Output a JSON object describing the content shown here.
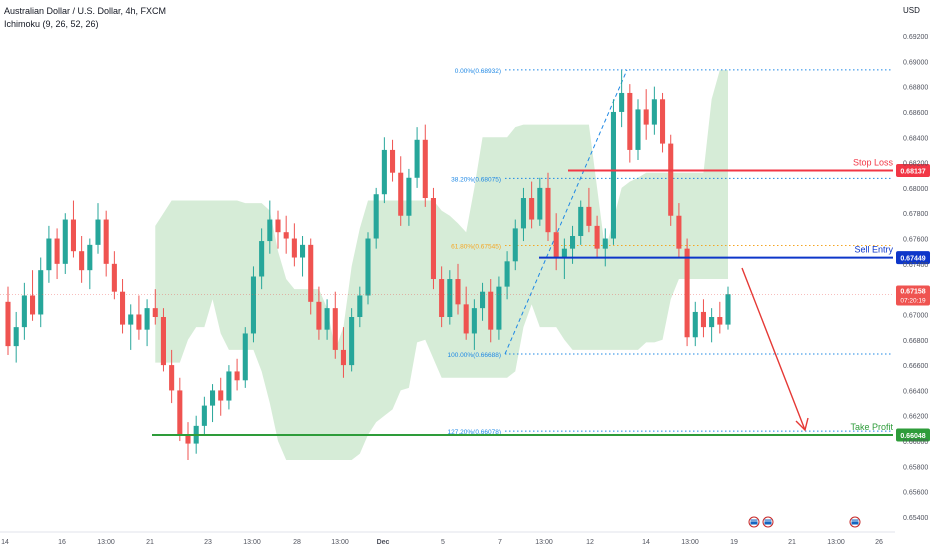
{
  "header": {
    "symbol_title": "Australian Dollar / U.S. Dollar, 4h, FXCM",
    "indicator": "Ichimoku (9, 26, 52, 26)"
  },
  "colors": {
    "up": "#26a69a",
    "down": "#ef5350",
    "cloud_bull": "#c8e6c9",
    "cloud_bear": "#ffcdd2",
    "fib_line": "#1e88e5",
    "stop_loss": "#f23645",
    "sell_entry": "#0d36c9",
    "take_profit": "#2e9c3a",
    "price_tag": "#ef5350",
    "arrow": "#e53935"
  },
  "chart_data": {
    "type": "candlestick",
    "currency": "USD",
    "ylim": [
      0.653,
      0.6946
    ],
    "y_ticks": [
      "0.65400",
      "0.65600",
      "0.65800",
      "0.66000",
      "0.66200",
      "0.66400",
      "0.66600",
      "0.66800",
      "0.67000",
      "0.67200",
      "0.67400",
      "0.67600",
      "0.67800",
      "0.68000",
      "0.68200",
      "0.68400",
      "0.68600",
      "0.68800",
      "0.69000",
      "0.69200"
    ],
    "x_ticks": [
      "14",
      "16",
      "13:00",
      "21",
      "23",
      "13:00",
      "28",
      "13:00",
      "Dec",
      "5",
      "7",
      "13:00",
      "12",
      "14",
      "13:00",
      "19",
      "21",
      "13:00",
      "26"
    ],
    "fib_levels": [
      {
        "label": "0.00%(0.68932)",
        "value": 0.68932
      },
      {
        "label": "38.20%(0.68075)",
        "value": 0.68075
      },
      {
        "label": "61.80%(0.67545)",
        "value": 0.67545
      },
      {
        "label": "100.00%(0.66688)",
        "value": 0.66688
      },
      {
        "label": "127.20%(0.66078)",
        "value": 0.66078
      }
    ],
    "levels": [
      {
        "name": "Stop Loss",
        "value": 0.68137,
        "tag": "0.68137"
      },
      {
        "name": "Sell Entry",
        "value": 0.67449,
        "tag": "0.67449"
      },
      {
        "name": "Take Profit",
        "value": 0.66048,
        "tag": "0.66048"
      }
    ],
    "last_price": {
      "value": 0.67158,
      "tag": "0.67158",
      "countdown": "07:20:19"
    },
    "candles": [
      {
        "o": 0.671,
        "h": 0.6722,
        "l": 0.6668,
        "c": 0.6675
      },
      {
        "o": 0.6675,
        "h": 0.6702,
        "l": 0.6662,
        "c": 0.669
      },
      {
        "o": 0.669,
        "h": 0.6725,
        "l": 0.668,
        "c": 0.6715
      },
      {
        "o": 0.6715,
        "h": 0.6735,
        "l": 0.6695,
        "c": 0.67
      },
      {
        "o": 0.67,
        "h": 0.6745,
        "l": 0.669,
        "c": 0.6735
      },
      {
        "o": 0.6735,
        "h": 0.677,
        "l": 0.6725,
        "c": 0.676
      },
      {
        "o": 0.676,
        "h": 0.6768,
        "l": 0.6728,
        "c": 0.674
      },
      {
        "o": 0.674,
        "h": 0.678,
        "l": 0.6732,
        "c": 0.6775
      },
      {
        "o": 0.6775,
        "h": 0.679,
        "l": 0.6745,
        "c": 0.675
      },
      {
        "o": 0.675,
        "h": 0.6762,
        "l": 0.6725,
        "c": 0.6735
      },
      {
        "o": 0.6735,
        "h": 0.676,
        "l": 0.672,
        "c": 0.6755
      },
      {
        "o": 0.6755,
        "h": 0.6788,
        "l": 0.6748,
        "c": 0.6775
      },
      {
        "o": 0.6775,
        "h": 0.6782,
        "l": 0.673,
        "c": 0.674
      },
      {
        "o": 0.674,
        "h": 0.675,
        "l": 0.6712,
        "c": 0.6718
      },
      {
        "o": 0.6718,
        "h": 0.6728,
        "l": 0.6685,
        "c": 0.6692
      },
      {
        "o": 0.6692,
        "h": 0.6708,
        "l": 0.6672,
        "c": 0.67
      },
      {
        "o": 0.67,
        "h": 0.6715,
        "l": 0.668,
        "c": 0.6688
      },
      {
        "o": 0.6688,
        "h": 0.6712,
        "l": 0.6675,
        "c": 0.6705
      },
      {
        "o": 0.6705,
        "h": 0.672,
        "l": 0.6692,
        "c": 0.6698
      },
      {
        "o": 0.6698,
        "h": 0.6705,
        "l": 0.6655,
        "c": 0.666
      },
      {
        "o": 0.666,
        "h": 0.6672,
        "l": 0.663,
        "c": 0.664
      },
      {
        "o": 0.664,
        "h": 0.665,
        "l": 0.66,
        "c": 0.6605
      },
      {
        "o": 0.6605,
        "h": 0.6615,
        "l": 0.6585,
        "c": 0.6598
      },
      {
        "o": 0.6598,
        "h": 0.662,
        "l": 0.659,
        "c": 0.6612
      },
      {
        "o": 0.6612,
        "h": 0.6635,
        "l": 0.6605,
        "c": 0.6628
      },
      {
        "o": 0.6628,
        "h": 0.6645,
        "l": 0.6615,
        "c": 0.664
      },
      {
        "o": 0.664,
        "h": 0.665,
        "l": 0.662,
        "c": 0.6632
      },
      {
        "o": 0.6632,
        "h": 0.666,
        "l": 0.6625,
        "c": 0.6655
      },
      {
        "o": 0.6655,
        "h": 0.6665,
        "l": 0.664,
        "c": 0.6648
      },
      {
        "o": 0.6648,
        "h": 0.669,
        "l": 0.6642,
        "c": 0.6685
      },
      {
        "o": 0.6685,
        "h": 0.6738,
        "l": 0.6678,
        "c": 0.673
      },
      {
        "o": 0.673,
        "h": 0.6768,
        "l": 0.672,
        "c": 0.6758
      },
      {
        "o": 0.6758,
        "h": 0.679,
        "l": 0.6748,
        "c": 0.6775
      },
      {
        "o": 0.6775,
        "h": 0.6782,
        "l": 0.6752,
        "c": 0.6765
      },
      {
        "o": 0.6765,
        "h": 0.6778,
        "l": 0.6748,
        "c": 0.676
      },
      {
        "o": 0.676,
        "h": 0.6772,
        "l": 0.6738,
        "c": 0.6745
      },
      {
        "o": 0.6745,
        "h": 0.6762,
        "l": 0.673,
        "c": 0.6755
      },
      {
        "o": 0.6755,
        "h": 0.676,
        "l": 0.67,
        "c": 0.671
      },
      {
        "o": 0.671,
        "h": 0.6722,
        "l": 0.668,
        "c": 0.6688
      },
      {
        "o": 0.6688,
        "h": 0.6712,
        "l": 0.668,
        "c": 0.6705
      },
      {
        "o": 0.6705,
        "h": 0.6718,
        "l": 0.6665,
        "c": 0.6672
      },
      {
        "o": 0.6672,
        "h": 0.669,
        "l": 0.665,
        "c": 0.666
      },
      {
        "o": 0.666,
        "h": 0.6705,
        "l": 0.6655,
        "c": 0.6698
      },
      {
        "o": 0.6698,
        "h": 0.6722,
        "l": 0.669,
        "c": 0.6715
      },
      {
        "o": 0.6715,
        "h": 0.6765,
        "l": 0.6708,
        "c": 0.676
      },
      {
        "o": 0.676,
        "h": 0.68,
        "l": 0.6752,
        "c": 0.6795
      },
      {
        "o": 0.6795,
        "h": 0.684,
        "l": 0.6788,
        "c": 0.683
      },
      {
        "o": 0.683,
        "h": 0.6838,
        "l": 0.6805,
        "c": 0.6812
      },
      {
        "o": 0.6812,
        "h": 0.6825,
        "l": 0.677,
        "c": 0.6778
      },
      {
        "o": 0.6778,
        "h": 0.6815,
        "l": 0.677,
        "c": 0.6808
      },
      {
        "o": 0.6808,
        "h": 0.6848,
        "l": 0.68,
        "c": 0.6838
      },
      {
        "o": 0.6838,
        "h": 0.685,
        "l": 0.6785,
        "c": 0.6792
      },
      {
        "o": 0.6792,
        "h": 0.68,
        "l": 0.672,
        "c": 0.6728
      },
      {
        "o": 0.6728,
        "h": 0.6738,
        "l": 0.669,
        "c": 0.6698
      },
      {
        "o": 0.6698,
        "h": 0.6735,
        "l": 0.6692,
        "c": 0.6728
      },
      {
        "o": 0.6728,
        "h": 0.674,
        "l": 0.67,
        "c": 0.6708
      },
      {
        "o": 0.6708,
        "h": 0.6722,
        "l": 0.668,
        "c": 0.6685
      },
      {
        "o": 0.6685,
        "h": 0.6712,
        "l": 0.6672,
        "c": 0.6705
      },
      {
        "o": 0.6705,
        "h": 0.6725,
        "l": 0.6695,
        "c": 0.6718
      },
      {
        "o": 0.6718,
        "h": 0.6728,
        "l": 0.6678,
        "c": 0.6688
      },
      {
        "o": 0.6688,
        "h": 0.673,
        "l": 0.668,
        "c": 0.6722
      },
      {
        "o": 0.6722,
        "h": 0.675,
        "l": 0.6712,
        "c": 0.6742
      },
      {
        "o": 0.6742,
        "h": 0.6775,
        "l": 0.6735,
        "c": 0.6768
      },
      {
        "o": 0.6768,
        "h": 0.68,
        "l": 0.6758,
        "c": 0.6792
      },
      {
        "o": 0.6792,
        "h": 0.6805,
        "l": 0.6768,
        "c": 0.6775
      },
      {
        "o": 0.6775,
        "h": 0.6808,
        "l": 0.677,
        "c": 0.68
      },
      {
        "o": 0.68,
        "h": 0.6812,
        "l": 0.6758,
        "c": 0.6765
      },
      {
        "o": 0.6765,
        "h": 0.678,
        "l": 0.6735,
        "c": 0.6745
      },
      {
        "o": 0.6745,
        "h": 0.676,
        "l": 0.6728,
        "c": 0.6752
      },
      {
        "o": 0.6752,
        "h": 0.677,
        "l": 0.674,
        "c": 0.6762
      },
      {
        "o": 0.6762,
        "h": 0.679,
        "l": 0.6755,
        "c": 0.6785
      },
      {
        "o": 0.6785,
        "h": 0.68,
        "l": 0.6765,
        "c": 0.677
      },
      {
        "o": 0.677,
        "h": 0.6778,
        "l": 0.6745,
        "c": 0.6752
      },
      {
        "o": 0.6752,
        "h": 0.6768,
        "l": 0.6738,
        "c": 0.676
      },
      {
        "o": 0.676,
        "h": 0.687,
        "l": 0.6755,
        "c": 0.686
      },
      {
        "o": 0.686,
        "h": 0.6893,
        "l": 0.6848,
        "c": 0.6875
      },
      {
        "o": 0.6875,
        "h": 0.6882,
        "l": 0.682,
        "c": 0.683
      },
      {
        "o": 0.683,
        "h": 0.687,
        "l": 0.6822,
        "c": 0.6862
      },
      {
        "o": 0.6862,
        "h": 0.6878,
        "l": 0.6838,
        "c": 0.685
      },
      {
        "o": 0.685,
        "h": 0.688,
        "l": 0.6842,
        "c": 0.687
      },
      {
        "o": 0.687,
        "h": 0.6875,
        "l": 0.6828,
        "c": 0.6835
      },
      {
        "o": 0.6835,
        "h": 0.6842,
        "l": 0.677,
        "c": 0.6778
      },
      {
        "o": 0.6778,
        "h": 0.6788,
        "l": 0.6745,
        "c": 0.6752
      },
      {
        "o": 0.6752,
        "h": 0.676,
        "l": 0.6675,
        "c": 0.6682
      },
      {
        "o": 0.6682,
        "h": 0.671,
        "l": 0.6675,
        "c": 0.6702
      },
      {
        "o": 0.6702,
        "h": 0.6712,
        "l": 0.6682,
        "c": 0.669
      },
      {
        "o": 0.669,
        "h": 0.6705,
        "l": 0.6678,
        "c": 0.6698
      },
      {
        "o": 0.6698,
        "h": 0.671,
        "l": 0.6685,
        "c": 0.6692
      },
      {
        "o": 0.6692,
        "h": 0.6722,
        "l": 0.6688,
        "c": 0.6716
      }
    ],
    "grid": false,
    "legend": "none"
  }
}
